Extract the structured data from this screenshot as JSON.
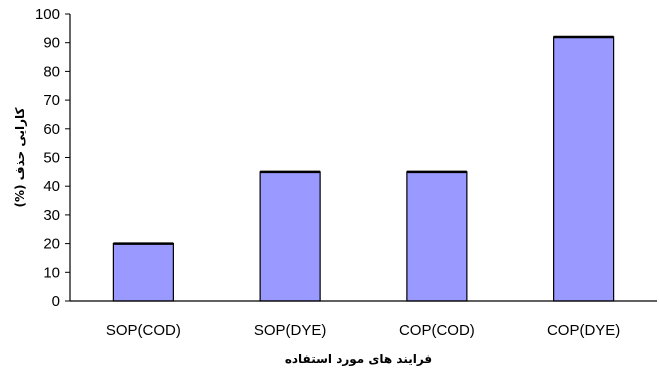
{
  "chart_data": {
    "type": "bar",
    "categories": [
      "SOP(COD)",
      "SOP(DYE)",
      "COP(COD)",
      "COP(DYE)"
    ],
    "values": [
      20,
      45,
      45,
      92
    ],
    "title": "",
    "xlabel": "فرایند های مورد استفاده",
    "ylabel": "کارایی حذف (%)",
    "ylim": [
      0,
      100
    ],
    "yticks": [
      0,
      10,
      20,
      30,
      40,
      50,
      60,
      70,
      80,
      90,
      100
    ],
    "grid": false,
    "legend": "none",
    "bar_color": "#9999ff",
    "bar_top_color": "#000000"
  }
}
